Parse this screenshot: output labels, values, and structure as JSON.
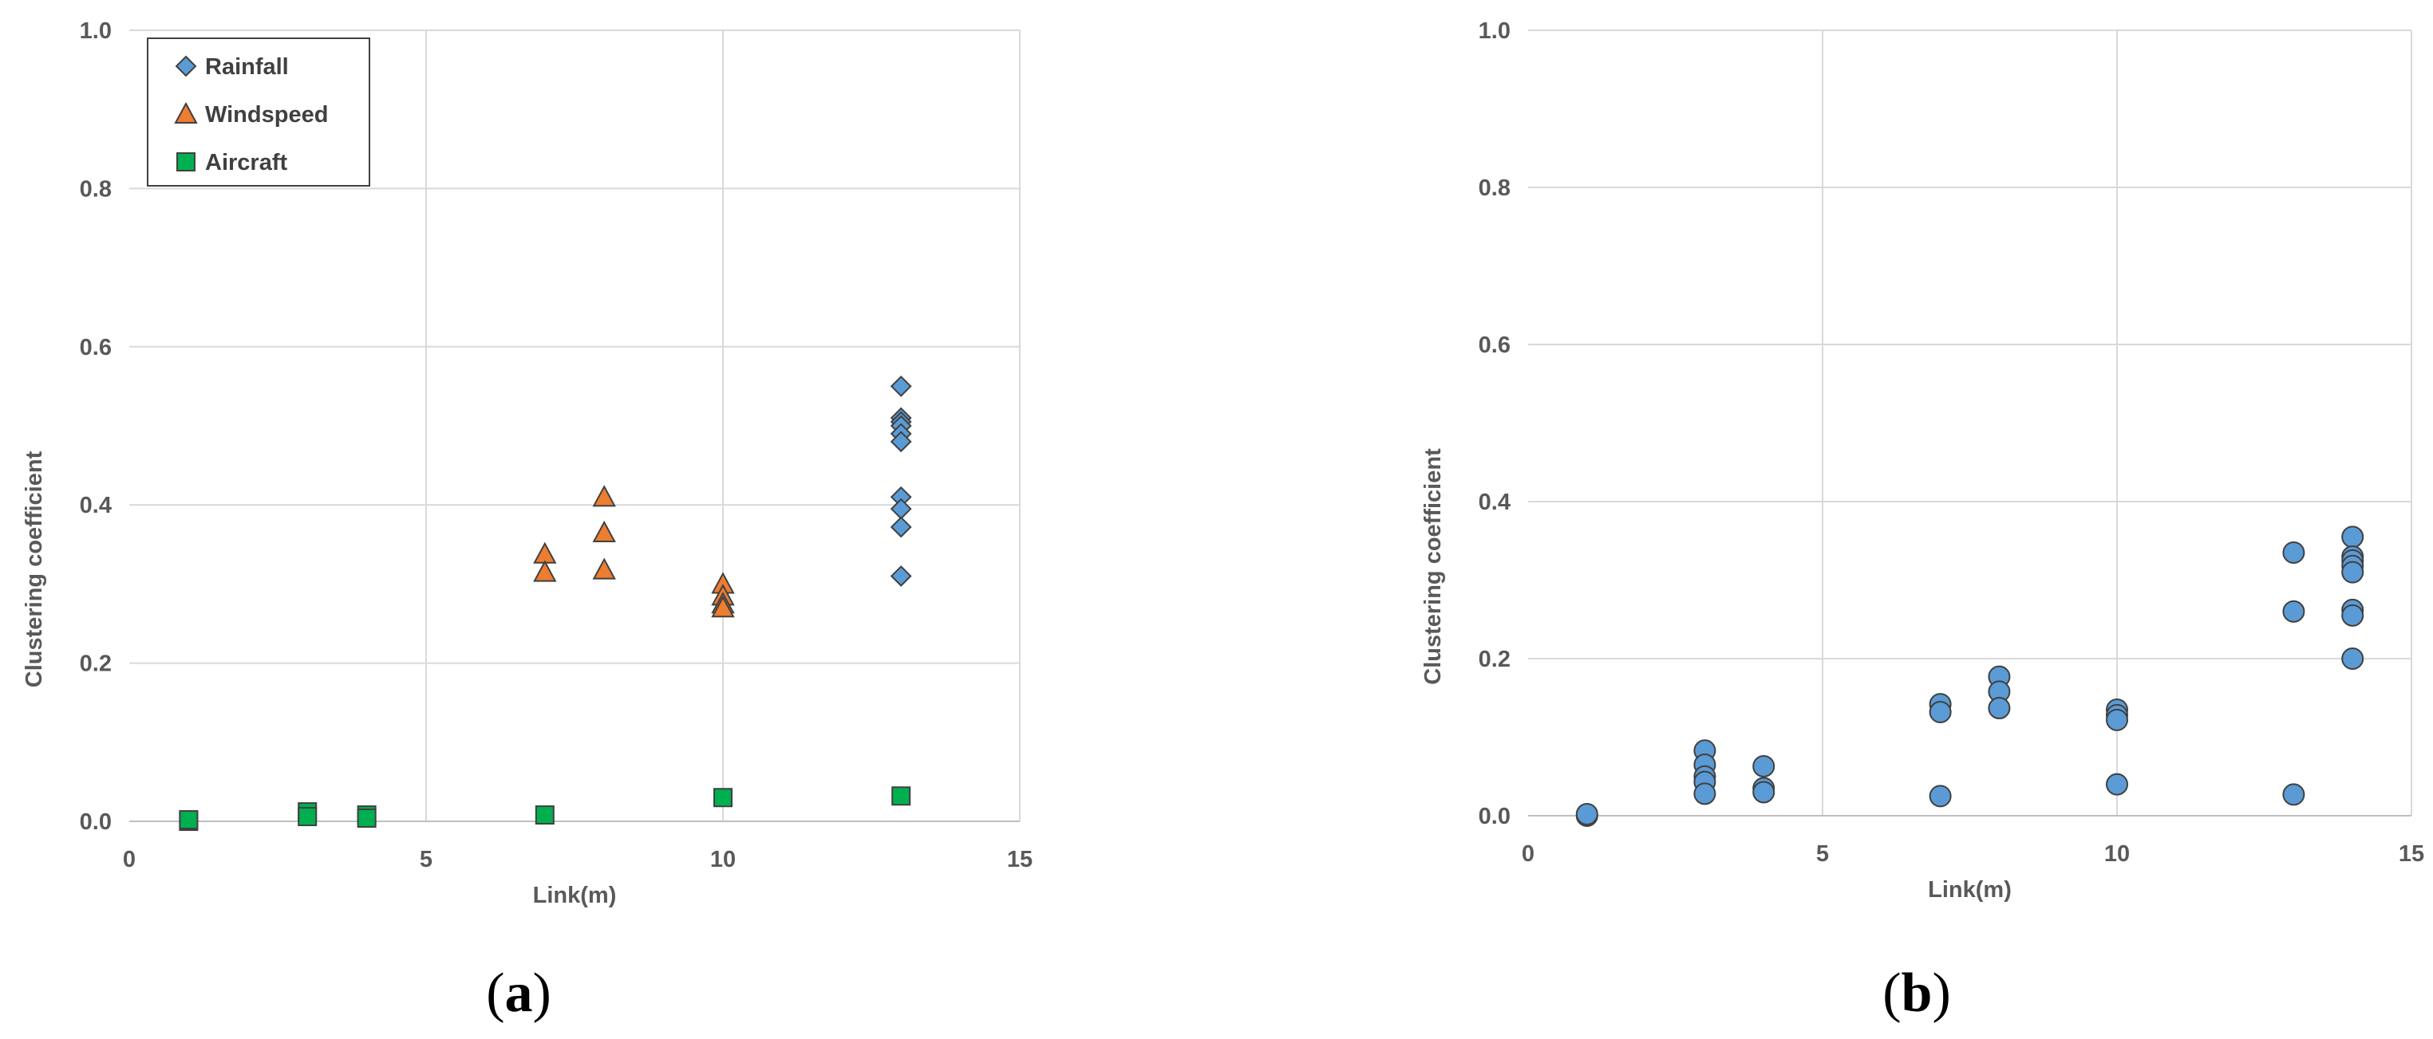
{
  "chart_data": [
    {
      "type": "scatter",
      "panel_label": "a",
      "xlabel": "Link(m)",
      "ylabel": "Clustering coefficient",
      "xlim": [
        0,
        15
      ],
      "ylim": [
        0,
        1.0
      ],
      "xticks": [
        "0",
        "5",
        "10",
        "15"
      ],
      "yticks": [
        "0.0",
        "0.2",
        "0.4",
        "0.6",
        "0.8",
        "1.0"
      ],
      "grid": true,
      "legend_position": "top-left",
      "series": [
        {
          "name": "Rainfall",
          "marker": "diamond",
          "color": "#5B9BD5",
          "points": [
            [
              13,
              0.55
            ],
            [
              13,
              0.51
            ],
            [
              13,
              0.505
            ],
            [
              13,
              0.5
            ],
            [
              13,
              0.49
            ],
            [
              13,
              0.48
            ],
            [
              13,
              0.41
            ],
            [
              13,
              0.395
            ],
            [
              13,
              0.372
            ],
            [
              13,
              0.31
            ]
          ]
        },
        {
          "name": "Windspeed",
          "marker": "triangle",
          "color": "#ED7D31",
          "points": [
            [
              7,
              0.338
            ],
            [
              7,
              0.315
            ],
            [
              8,
              0.41
            ],
            [
              8,
              0.365
            ],
            [
              8,
              0.318
            ],
            [
              10,
              0.3
            ],
            [
              10,
              0.285
            ],
            [
              10,
              0.275
            ],
            [
              10,
              0.27
            ]
          ]
        },
        {
          "name": "Aircraft",
          "marker": "square",
          "color": "#00B050",
          "points": [
            [
              1,
              0.0
            ],
            [
              1,
              0.002
            ],
            [
              3,
              0.012
            ],
            [
              3,
              0.006
            ],
            [
              4,
              0.008
            ],
            [
              4,
              0.004
            ],
            [
              7,
              0.008
            ],
            [
              10,
              0.03
            ],
            [
              13,
              0.032
            ]
          ]
        }
      ]
    },
    {
      "type": "scatter",
      "panel_label": "b",
      "xlabel": "Link(m)",
      "ylabel": "Clustering coefficient",
      "xlim": [
        0,
        15
      ],
      "ylim": [
        0,
        1.0
      ],
      "xticks": [
        "0",
        "5",
        "10",
        "15"
      ],
      "yticks": [
        "0.0",
        "0.2",
        "0.4",
        "0.6",
        "0.8",
        "1.0"
      ],
      "grid": true,
      "series": [
        {
          "marker": "circle",
          "color": "#5B9BD5",
          "points": [
            [
              1,
              0.0
            ],
            [
              1,
              0.002
            ],
            [
              3,
              0.083
            ],
            [
              3,
              0.065
            ],
            [
              3,
              0.05
            ],
            [
              3,
              0.043
            ],
            [
              3,
              0.028
            ],
            [
              4,
              0.063
            ],
            [
              4,
              0.035
            ],
            [
              4,
              0.03
            ],
            [
              7,
              0.142
            ],
            [
              7,
              0.132
            ],
            [
              7,
              0.025
            ],
            [
              8,
              0.177
            ],
            [
              8,
              0.158
            ],
            [
              8,
              0.137
            ],
            [
              10,
              0.135
            ],
            [
              10,
              0.128
            ],
            [
              10,
              0.122
            ],
            [
              10,
              0.04
            ],
            [
              13,
              0.335
            ],
            [
              13,
              0.26
            ],
            [
              13,
              0.027
            ],
            [
              14,
              0.355
            ],
            [
              14,
              0.33
            ],
            [
              14,
              0.325
            ],
            [
              14,
              0.318
            ],
            [
              14,
              0.31
            ],
            [
              14,
              0.262
            ],
            [
              14,
              0.255
            ],
            [
              14,
              0.2
            ]
          ]
        }
      ]
    }
  ]
}
